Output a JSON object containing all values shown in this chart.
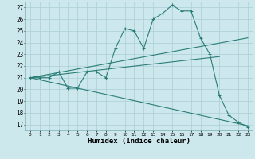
{
  "xlabel": "Humidex (Indice chaleur)",
  "xlim": [
    -0.5,
    23.5
  ],
  "ylim": [
    16.5,
    27.5
  ],
  "xticks": [
    0,
    1,
    2,
    3,
    4,
    5,
    6,
    7,
    8,
    9,
    10,
    11,
    12,
    13,
    14,
    15,
    16,
    17,
    18,
    19,
    20,
    21,
    22,
    23
  ],
  "yticks": [
    17,
    18,
    19,
    20,
    21,
    22,
    23,
    24,
    25,
    26,
    27
  ],
  "bg_color": "#cde8ec",
  "line_color": "#2a7d78",
  "grid_color": "#aacdd4",
  "lines": [
    {
      "x": [
        0,
        1,
        2,
        3,
        4,
        5,
        6,
        7,
        8,
        9,
        10,
        11,
        12,
        13,
        14,
        15,
        16,
        17,
        18,
        19,
        20,
        21,
        22,
        23
      ],
      "y": [
        21.0,
        21.0,
        21.0,
        21.5,
        20.1,
        20.1,
        21.5,
        21.5,
        21.0,
        23.5,
        25.2,
        25.0,
        23.5,
        26.0,
        26.5,
        27.2,
        26.7,
        26.7,
        24.4,
        23.0,
        19.5,
        17.8,
        17.2,
        16.8
      ],
      "marker": "+"
    },
    {
      "x": [
        0,
        23
      ],
      "y": [
        21.0,
        24.4
      ],
      "marker": null
    },
    {
      "x": [
        0,
        20
      ],
      "y": [
        21.0,
        22.8
      ],
      "marker": null
    },
    {
      "x": [
        0,
        23
      ],
      "y": [
        21.0,
        16.9
      ],
      "marker": null
    }
  ]
}
